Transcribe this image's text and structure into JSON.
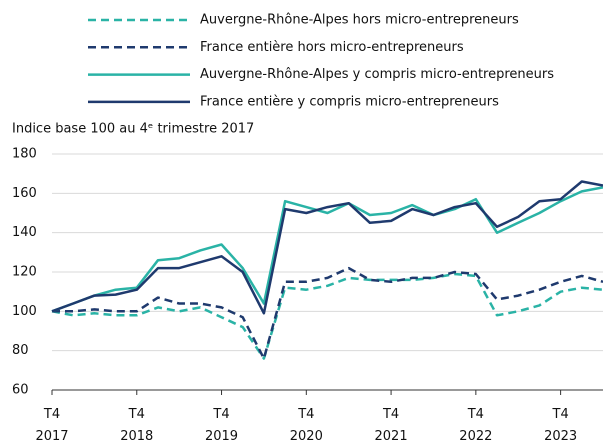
{
  "chart_data": {
    "type": "line",
    "y_label": "Indice base 100 au 4ᵉ trimestre 2017",
    "categories": [
      "T4\n2017",
      null,
      null,
      null,
      "T4\n2018",
      null,
      null,
      null,
      "T4\n2019",
      null,
      null,
      null,
      "T4\n2020",
      null,
      null,
      null,
      "T4\n2021",
      null,
      null,
      null,
      "T4\n2022",
      null,
      null,
      null,
      "T4\n2023",
      null,
      null
    ],
    "series": [
      {
        "name": "Auvergne-Rhône-Alpes hors micro-entrepreneurs",
        "color": "#2ab3a6",
        "dash": true,
        "values": [
          100,
          98,
          99,
          98,
          98,
          102,
          100,
          102,
          97,
          92,
          76,
          112,
          111,
          113,
          117,
          116,
          116,
          116,
          117,
          119,
          118,
          98,
          100,
          103,
          110,
          112,
          111
        ]
      },
      {
        "name": "France entière hors micro-entrepreneurs",
        "color": "#1f3a6e",
        "dash": true,
        "values": [
          100,
          100,
          101,
          100,
          100,
          107,
          104,
          104,
          102,
          97,
          76,
          115,
          115,
          117,
          122,
          116,
          115,
          117,
          117,
          120,
          119,
          106,
          108,
          111,
          115,
          118,
          115
        ]
      },
      {
        "name": "Auvergne-Rhône-Alpes y compris micro-entrepreneurs",
        "color": "#2ab3a6",
        "dash": false,
        "values": [
          100,
          104,
          108,
          111,
          112,
          126,
          127,
          131,
          134,
          122,
          104,
          156,
          153,
          150,
          155,
          149,
          150,
          154,
          149,
          152,
          157,
          140,
          145,
          150,
          156,
          161,
          163
        ]
      },
      {
        "name": "France entière y compris micro-entrepreneurs",
        "color": "#1f3a6e",
        "dash": false,
        "values": [
          100,
          104,
          108,
          108.5,
          111,
          122,
          122,
          125,
          128,
          120,
          99,
          152,
          150,
          153,
          155,
          145,
          146,
          152,
          149,
          153,
          155,
          143,
          148,
          156,
          157,
          166,
          164
        ]
      }
    ],
    "ylim": [
      60,
      180
    ],
    "yticks": [
      60,
      80,
      100,
      120,
      140,
      160,
      180
    ],
    "grid": true
  }
}
